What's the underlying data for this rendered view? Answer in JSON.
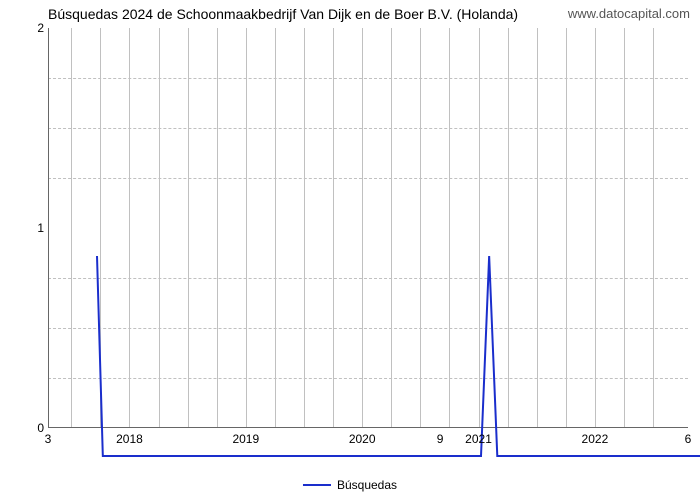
{
  "title": "Búsquedas 2024 de Schoonmaakbedrijf Van Dijk en de Boer B.V. (Holanda)",
  "watermark": "www.datocapital.com",
  "legend": {
    "label": "Búsquedas",
    "color": "#1a2ecc"
  },
  "chart": {
    "type": "line",
    "background_color": "#ffffff",
    "grid_color": "#c0c0c0",
    "axis_color": "#666666",
    "line_color": "#1a2ecc",
    "line_width": 2,
    "title_fontsize": 14,
    "label_fontsize": 12,
    "xlim": [
      2017.3,
      2022.8
    ],
    "ylim": [
      0,
      2
    ],
    "yticks": [
      0,
      1,
      2
    ],
    "y_minor_ticks": [
      0.25,
      0.5,
      0.75,
      1.25,
      1.5,
      1.75
    ],
    "xticks": [
      2018,
      2019,
      2020,
      2021,
      2022
    ],
    "x_minor_ticks": [
      2017.5,
      2017.75,
      2018.25,
      2018.5,
      2018.75,
      2019.25,
      2019.5,
      2019.75,
      2020.25,
      2020.5,
      2020.75,
      2021.25,
      2021.5,
      2021.75,
      2022.25,
      2022.5
    ],
    "points": [
      {
        "x": 2017.3,
        "y": 1
      },
      {
        "x": 2017.35,
        "y": 0
      },
      {
        "x": 2020.6,
        "y": 0
      },
      {
        "x": 2020.67,
        "y": 1
      },
      {
        "x": 2020.74,
        "y": 0
      },
      {
        "x": 2022.72,
        "y": 0
      },
      {
        "x": 2022.8,
        "y": 1
      }
    ],
    "value_labels": [
      {
        "x": 2017.3,
        "text": "3"
      },
      {
        "x": 2020.67,
        "text": "9"
      },
      {
        "x": 2022.8,
        "text": "6"
      }
    ]
  }
}
